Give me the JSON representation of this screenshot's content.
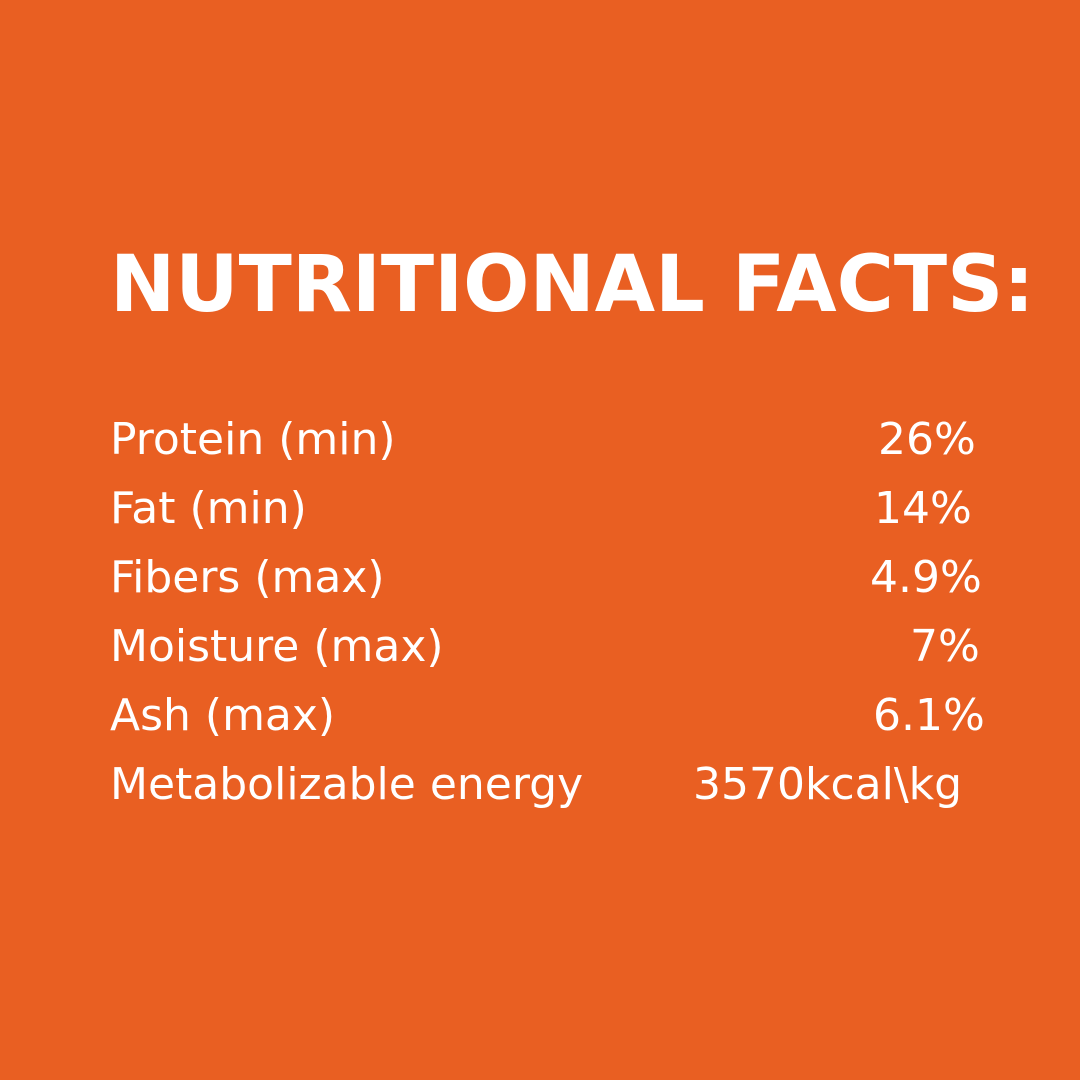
{
  "title": "NUTRITIONAL FACTS:",
  "background_color": "#E95F22",
  "rows": [
    {
      "label": "Protein (min)",
      "value": "26%"
    },
    {
      "label": "Fat (min)",
      "value": "14%"
    },
    {
      "label": "Fibers (max)",
      "value": "4.9%"
    },
    {
      "label": "Moisture (max)",
      "value": "7%"
    },
    {
      "label": "Ash (max)",
      "value": "6.1%"
    },
    {
      "label": "Metabolizable energy",
      "value": "3570kcal\\kg"
    }
  ]
}
